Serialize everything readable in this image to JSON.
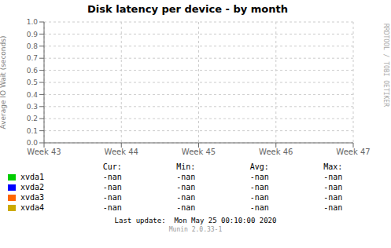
{
  "chart_data": {
    "type": "line",
    "title": "Disk latency per device - by month",
    "ylabel": "Average IO Wait (seconds)",
    "categories": [
      "Week 43",
      "Week 44",
      "Week 45",
      "Week 46",
      "Week 47"
    ],
    "series": [
      {
        "name": "xvda1",
        "color": "#00cc00",
        "values": [
          null,
          null,
          null,
          null,
          null
        ],
        "summary": [
          "-nan",
          "-nan",
          "-nan",
          "-nan"
        ]
      },
      {
        "name": "xvda2",
        "color": "#0000ff",
        "values": [
          null,
          null,
          null,
          null,
          null
        ],
        "summary": [
          "-nan",
          "-nan",
          "-nan",
          "-nan"
        ]
      },
      {
        "name": "xvda3",
        "color": "#ff6600",
        "values": [
          null,
          null,
          null,
          null,
          null
        ],
        "summary": [
          "-nan",
          "-nan",
          "-nan",
          "-nan"
        ]
      },
      {
        "name": "xvda4",
        "color": "#ccaa00",
        "values": [
          null,
          null,
          null,
          null,
          null
        ],
        "summary": [
          "-nan",
          "-nan",
          "-nan",
          "-nan"
        ]
      }
    ],
    "summary_headers": [
      "Cur:",
      "Min:",
      "Avg:",
      "Max:"
    ],
    "ylim": [
      0.0,
      1.0
    ],
    "yticks": [
      {
        "value": 0.0,
        "label": "0.0"
      },
      0.1,
      0.2,
      0.3,
      0.4,
      0.5,
      0.6,
      0.7,
      0.8,
      0.9,
      {
        "value": 1.0,
        "label": "1.0"
      }
    ],
    "grid": true,
    "legend": "bottom",
    "annotations": [
      "Last update:  Mon May 25 00:10:00 2020",
      "Munin 2.0.33-1",
      "RRDTOOL / TOBI OETIKER"
    ]
  }
}
